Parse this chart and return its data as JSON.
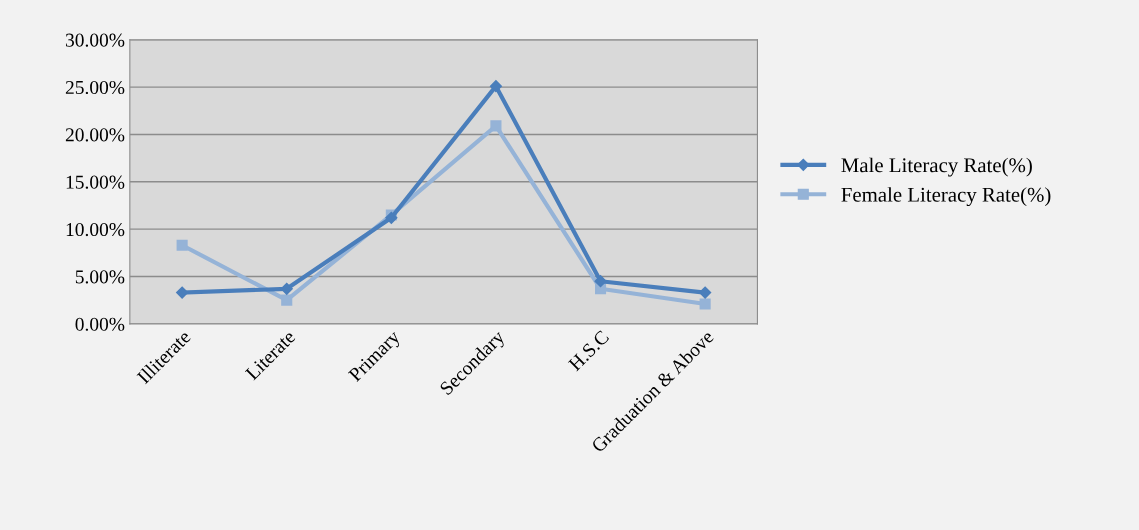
{
  "chart_data": {
    "type": "line",
    "categories": [
      "Illiterate",
      "Literate",
      "Primary",
      "Secondary",
      "H.S.C",
      "Graduation & Above"
    ],
    "series": [
      {
        "name": "Male Literacy Rate(%)",
        "color": "#4a7ebb",
        "marker": "diamond",
        "values": [
          3.3,
          3.7,
          11.2,
          25.1,
          4.5,
          3.3
        ]
      },
      {
        "name": "Female Literacy Rate(%)",
        "color": "#95b3d7",
        "marker": "square",
        "values": [
          8.3,
          2.5,
          11.5,
          20.9,
          3.7,
          2.1
        ]
      }
    ],
    "ylim": [
      0,
      30
    ],
    "yticks": [
      {
        "value": 0,
        "label": "0.00%"
      },
      {
        "value": 5,
        "label": "5.00%"
      },
      {
        "value": 10,
        "label": "10.00%"
      },
      {
        "value": 15,
        "label": "15.00%"
      },
      {
        "value": 20,
        "label": "20.00%"
      },
      {
        "value": 25,
        "label": "25.00%"
      },
      {
        "value": 30,
        "label": "30.00%"
      }
    ],
    "grid": "y",
    "legend": "right",
    "line_style": "solid"
  }
}
